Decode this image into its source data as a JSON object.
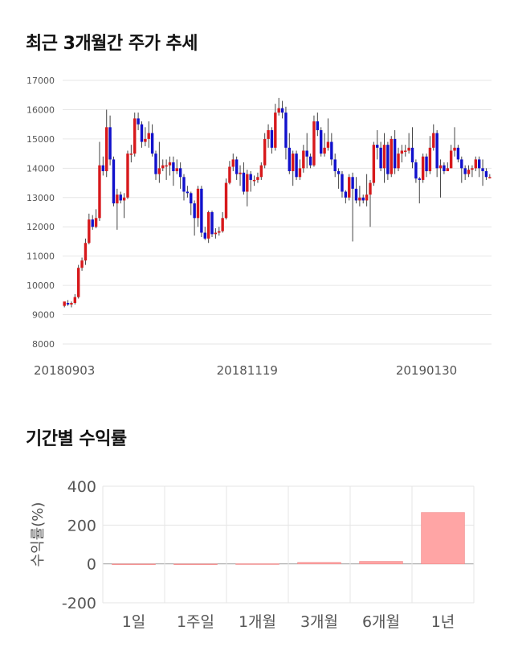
{
  "sections": {
    "price_title": "최근 3개월간 주가 추세",
    "return_title": "기간별 수익률"
  },
  "colors": {
    "up": "#d7191c",
    "down": "#1111cc",
    "bar": "#ffa5a5",
    "grid": "#e6e6e6"
  },
  "chart_data": [
    {
      "type": "candlestick",
      "title": "최근 3개월간 주가 추세",
      "xlabel": "",
      "ylabel": "",
      "ylim": [
        8000,
        17000
      ],
      "yticks": [
        8000,
        9000,
        10000,
        11000,
        12000,
        13000,
        14000,
        15000,
        16000,
        17000
      ],
      "x_tick_labels": [
        "20180903",
        "20181119",
        "20190130"
      ],
      "x_tick_index": [
        0,
        52,
        103
      ],
      "grid": true,
      "candles": [
        [
          9300,
          9450,
          9250,
          9400
        ],
        [
          9400,
          9350,
          9300,
          9500
        ],
        [
          9350,
          9400,
          9250,
          9450
        ],
        [
          9400,
          9600,
          9350,
          9700
        ],
        [
          9600,
          10600,
          9550,
          10700
        ],
        [
          10600,
          10850,
          10500,
          10950
        ],
        [
          10850,
          11450,
          10700,
          11600
        ],
        [
          11450,
          12250,
          11400,
          12450
        ],
        [
          12250,
          12000,
          11900,
          12400
        ],
        [
          12000,
          12300,
          11950,
          12600
        ],
        [
          12300,
          14100,
          12200,
          14900
        ],
        [
          14100,
          13900,
          13750,
          14400
        ],
        [
          13900,
          15400,
          13700,
          16000
        ],
        [
          15400,
          14300,
          14100,
          15800
        ],
        [
          14300,
          12800,
          12700,
          14400
        ],
        [
          12800,
          13100,
          11900,
          13300
        ],
        [
          13100,
          12900,
          12800,
          13200
        ],
        [
          12900,
          13000,
          12300,
          13150
        ],
        [
          13000,
          14500,
          12950,
          14600
        ],
        [
          14500,
          14500,
          14200,
          14800
        ],
        [
          14500,
          15700,
          14400,
          15900
        ],
        [
          15700,
          15500,
          15300,
          15900
        ],
        [
          15500,
          14900,
          14700,
          15600
        ],
        [
          14900,
          15000,
          14750,
          15400
        ],
        [
          15000,
          15200,
          14700,
          15600
        ],
        [
          15200,
          14500,
          14400,
          15500
        ],
        [
          14500,
          13800,
          13600,
          14600
        ],
        [
          13800,
          14000,
          13500,
          14900
        ],
        [
          14000,
          14100,
          13900,
          14300
        ],
        [
          14100,
          14100,
          13600,
          14300
        ],
        [
          14100,
          14200,
          13750,
          14400
        ],
        [
          14200,
          13900,
          13400,
          14400
        ],
        [
          13900,
          14000,
          13800,
          14300
        ],
        [
          14000,
          13700,
          13300,
          14200
        ],
        [
          13700,
          13200,
          12900,
          13800
        ],
        [
          13200,
          13150,
          13000,
          13400
        ],
        [
          13150,
          12800,
          12400,
          13200
        ],
        [
          12800,
          12300,
          11700,
          12900
        ],
        [
          12300,
          13300,
          12000,
          13400
        ],
        [
          13300,
          11800,
          11650,
          13400
        ],
        [
          11800,
          11600,
          11550,
          12000
        ],
        [
          11600,
          12500,
          11450,
          12550
        ],
        [
          12500,
          11750,
          11650,
          12550
        ],
        [
          11750,
          11800,
          11600,
          11950
        ],
        [
          11800,
          11850,
          11700,
          12000
        ],
        [
          11850,
          12300,
          11800,
          12500
        ],
        [
          12300,
          13500,
          12250,
          13650
        ],
        [
          13500,
          14050,
          13450,
          14250
        ],
        [
          14050,
          14300,
          13900,
          14500
        ],
        [
          14300,
          13800,
          13600,
          14400
        ],
        [
          13800,
          13850,
          13400,
          14100
        ],
        [
          13850,
          13200,
          13100,
          14200
        ],
        [
          13200,
          13800,
          12700,
          13950
        ],
        [
          13800,
          13600,
          13200,
          13900
        ],
        [
          13600,
          13600,
          13400,
          13750
        ],
        [
          13600,
          13700,
          13500,
          13850
        ],
        [
          13700,
          14100,
          13600,
          14200
        ],
        [
          14100,
          15000,
          14000,
          15200
        ],
        [
          15000,
          15300,
          14700,
          15500
        ],
        [
          15300,
          14700,
          14500,
          15400
        ],
        [
          14700,
          15900,
          14600,
          16200
        ],
        [
          15900,
          16050,
          15800,
          16400
        ],
        [
          16050,
          15900,
          15700,
          16300
        ],
        [
          15900,
          14700,
          14300,
          16100
        ],
        [
          14700,
          13900,
          13800,
          15200
        ],
        [
          13900,
          14500,
          13400,
          14600
        ],
        [
          14500,
          13700,
          13600,
          14600
        ],
        [
          13700,
          14000,
          13600,
          14300
        ],
        [
          14000,
          14600,
          13850,
          14800
        ],
        [
          14600,
          14400,
          14000,
          15200
        ],
        [
          14400,
          14100,
          14000,
          14500
        ],
        [
          14100,
          15600,
          14050,
          15800
        ],
        [
          15600,
          15300,
          15100,
          15900
        ],
        [
          15300,
          14500,
          14400,
          15400
        ],
        [
          14500,
          14700,
          14400,
          15200
        ],
        [
          14700,
          14900,
          14600,
          15700
        ],
        [
          14900,
          14300,
          14100,
          15200
        ],
        [
          14300,
          13900,
          13700,
          14500
        ],
        [
          13900,
          13800,
          13300,
          14000
        ],
        [
          13800,
          13200,
          13000,
          13900
        ],
        [
          13200,
          13000,
          12800,
          13250
        ],
        [
          13000,
          13700,
          12900,
          13800
        ],
        [
          13700,
          13300,
          11500,
          13850
        ],
        [
          13300,
          12900,
          12800,
          13700
        ],
        [
          12900,
          13000,
          12700,
          13400
        ],
        [
          13000,
          12900,
          12800,
          13100
        ],
        [
          12900,
          13100,
          12700,
          13800
        ],
        [
          13100,
          13500,
          12000,
          13600
        ],
        [
          13500,
          14800,
          13400,
          14900
        ],
        [
          14800,
          14700,
          14300,
          15300
        ],
        [
          14700,
          14000,
          13900,
          14900
        ],
        [
          14000,
          14800,
          13500,
          15200
        ],
        [
          14800,
          13800,
          13600,
          14900
        ],
        [
          13800,
          15000,
          13700,
          15100
        ],
        [
          15000,
          14000,
          13800,
          15300
        ],
        [
          14000,
          14500,
          13900,
          14700
        ],
        [
          14500,
          14600,
          14200,
          14800
        ],
        [
          14600,
          14600,
          14400,
          14800
        ],
        [
          14600,
          14700,
          14500,
          15200
        ],
        [
          14700,
          14200,
          14000,
          15400
        ],
        [
          14200,
          13650,
          13500,
          14300
        ],
        [
          13650,
          13600,
          12800,
          13700
        ],
        [
          13600,
          14400,
          13500,
          14500
        ],
        [
          14400,
          13900,
          13700,
          14500
        ],
        [
          13900,
          14700,
          13800,
          15100
        ],
        [
          14700,
          15200,
          14600,
          15500
        ],
        [
          15200,
          14000,
          13700,
          15300
        ],
        [
          14000,
          14100,
          13000,
          14300
        ],
        [
          14100,
          13900,
          13800,
          14200
        ],
        [
          13900,
          14000,
          13900,
          14200
        ],
        [
          14000,
          14600,
          14000,
          14800
        ],
        [
          14600,
          14700,
          14400,
          15400
        ],
        [
          14700,
          14300,
          14200,
          14800
        ],
        [
          14300,
          14000,
          13500,
          14400
        ],
        [
          14000,
          13800,
          13600,
          14100
        ],
        [
          13800,
          13950,
          13700,
          14100
        ],
        [
          13950,
          14000,
          13700,
          14100
        ],
        [
          14000,
          14300,
          13900,
          14400
        ],
        [
          14300,
          14000,
          13700,
          14400
        ],
        [
          14000,
          13900,
          13400,
          14300
        ],
        [
          13900,
          13700,
          13600,
          14000
        ],
        [
          13700,
          13700,
          13650,
          13800
        ]
      ]
    },
    {
      "type": "bar",
      "title": "기간별 수익률",
      "xlabel": "",
      "ylabel": "수익률(%)",
      "ylim": [
        -200,
        400
      ],
      "yticks": [
        -200,
        0,
        200,
        400
      ],
      "grid": true,
      "categories": [
        "1일",
        "1주일",
        "1개월",
        "3개월",
        "6개월",
        "1년"
      ],
      "values": [
        0,
        0,
        1,
        8,
        13,
        265
      ]
    }
  ]
}
